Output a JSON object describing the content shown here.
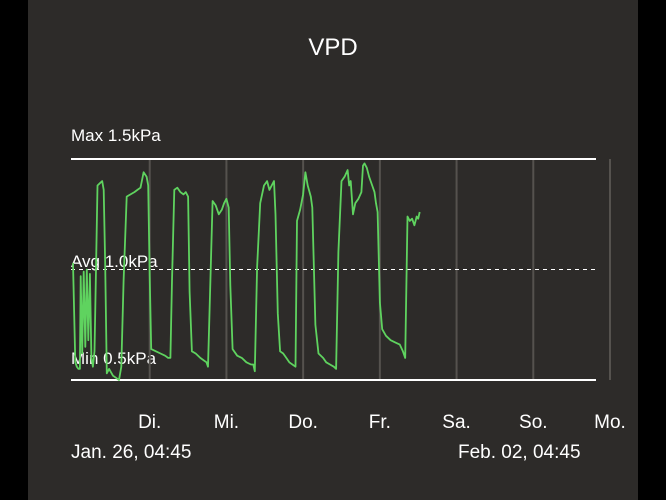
{
  "colors": {
    "background": "#000000",
    "panel": "#2d2b29",
    "series": "#5fd35f",
    "text": "#ffffff",
    "separator": "#55524e"
  },
  "chart_data": {
    "type": "line",
    "title": "VPD",
    "unit": "kPa",
    "reference_lines": [
      {
        "label": "Max 1.5kPa",
        "value": 1.5,
        "style": "solid"
      },
      {
        "label": "Avg 1.0kPa",
        "value": 1.0,
        "style": "dashed"
      },
      {
        "label": "Min 0.5kPa",
        "value": 0.5,
        "style": "solid"
      }
    ],
    "x_day_labels": [
      "Di.",
      "Mi.",
      "Do.",
      "Fr.",
      "Sa.",
      "So.",
      "Mo."
    ],
    "range_start": "Jan. 26, 04:45",
    "range_end": "Feb. 02, 04:45",
    "xlim_days": [
      0,
      7
    ],
    "ylim": [
      0.5,
      1.5
    ],
    "grid": "vertical day separators",
    "legend": "none",
    "series": [
      {
        "points": [
          [
            0.0,
            1.03
          ],
          [
            0.03,
            0.58
          ],
          [
            0.05,
            0.56
          ],
          [
            0.07,
            0.55
          ],
          [
            0.09,
            0.55
          ],
          [
            0.1,
            0.97
          ],
          [
            0.12,
            0.62
          ],
          [
            0.14,
            0.99
          ],
          [
            0.16,
            0.65
          ],
          [
            0.18,
            1.0
          ],
          [
            0.2,
            0.68
          ],
          [
            0.22,
            0.98
          ],
          [
            0.24,
            0.6
          ],
          [
            0.26,
            0.56
          ],
          [
            0.28,
            0.63
          ],
          [
            0.3,
            1.0
          ],
          [
            0.32,
            1.38
          ],
          [
            0.35,
            1.39
          ],
          [
            0.38,
            1.4
          ],
          [
            0.4,
            1.36
          ],
          [
            0.42,
            1.02
          ],
          [
            0.44,
            0.53
          ],
          [
            0.47,
            0.55
          ],
          [
            0.52,
            0.52
          ],
          [
            0.56,
            0.51
          ],
          [
            0.6,
            0.5
          ],
          [
            0.63,
            0.56
          ],
          [
            0.66,
            0.95
          ],
          [
            0.7,
            1.33
          ],
          [
            0.75,
            1.34
          ],
          [
            0.8,
            1.35
          ],
          [
            0.84,
            1.36
          ],
          [
            0.88,
            1.37
          ],
          [
            0.92,
            1.44
          ],
          [
            0.96,
            1.42
          ],
          [
            0.98,
            1.38
          ],
          [
            1.0,
            0.97
          ],
          [
            1.02,
            0.64
          ],
          [
            1.08,
            0.63
          ],
          [
            1.14,
            0.62
          ],
          [
            1.2,
            0.61
          ],
          [
            1.24,
            0.6
          ],
          [
            1.27,
            0.6
          ],
          [
            1.29,
            0.95
          ],
          [
            1.32,
            1.36
          ],
          [
            1.36,
            1.37
          ],
          [
            1.4,
            1.35
          ],
          [
            1.44,
            1.34
          ],
          [
            1.47,
            1.35
          ],
          [
            1.5,
            1.33
          ],
          [
            1.52,
            0.9
          ],
          [
            1.55,
            0.63
          ],
          [
            1.6,
            0.62
          ],
          [
            1.66,
            0.6
          ],
          [
            1.7,
            0.59
          ],
          [
            1.74,
            0.58
          ],
          [
            1.76,
            0.56
          ],
          [
            1.78,
            0.82
          ],
          [
            1.82,
            1.31
          ],
          [
            1.86,
            1.29
          ],
          [
            1.9,
            1.25
          ],
          [
            1.94,
            1.27
          ],
          [
            1.97,
            1.3
          ],
          [
            2.0,
            1.32
          ],
          [
            2.03,
            1.28
          ],
          [
            2.05,
            0.93
          ],
          [
            2.08,
            0.64
          ],
          [
            2.14,
            0.61
          ],
          [
            2.2,
            0.6
          ],
          [
            2.26,
            0.58
          ],
          [
            2.32,
            0.57
          ],
          [
            2.35,
            0.57
          ],
          [
            2.37,
            0.54
          ],
          [
            2.4,
            1.01
          ],
          [
            2.44,
            1.3
          ],
          [
            2.49,
            1.38
          ],
          [
            2.53,
            1.4
          ],
          [
            2.56,
            1.36
          ],
          [
            2.59,
            1.38
          ],
          [
            2.62,
            1.4
          ],
          [
            2.64,
            1.25
          ],
          [
            2.67,
            0.8
          ],
          [
            2.7,
            0.63
          ],
          [
            2.74,
            0.62
          ],
          [
            2.78,
            0.6
          ],
          [
            2.82,
            0.58
          ],
          [
            2.86,
            0.57
          ],
          [
            2.9,
            0.56
          ],
          [
            2.92,
            1.22
          ],
          [
            2.96,
            1.27
          ],
          [
            3.0,
            1.34
          ],
          [
            3.03,
            1.44
          ],
          [
            3.06,
            1.38
          ],
          [
            3.1,
            1.33
          ],
          [
            3.12,
            1.28
          ],
          [
            3.16,
            0.75
          ],
          [
            3.2,
            0.62
          ],
          [
            3.26,
            0.6
          ],
          [
            3.3,
            0.58
          ],
          [
            3.35,
            0.57
          ],
          [
            3.4,
            0.56
          ],
          [
            3.43,
            0.55
          ],
          [
            3.46,
            1.08
          ],
          [
            3.5,
            1.4
          ],
          [
            3.54,
            1.42
          ],
          [
            3.58,
            1.45
          ],
          [
            3.6,
            1.38
          ],
          [
            3.62,
            1.4
          ],
          [
            3.65,
            1.25
          ],
          [
            3.68,
            1.3
          ],
          [
            3.72,
            1.32
          ],
          [
            3.76,
            1.35
          ],
          [
            3.78,
            1.47
          ],
          [
            3.8,
            1.48
          ],
          [
            3.83,
            1.46
          ],
          [
            3.86,
            1.42
          ],
          [
            3.9,
            1.38
          ],
          [
            3.93,
            1.35
          ],
          [
            3.95,
            1.3
          ],
          [
            3.97,
            1.26
          ],
          [
            4.0,
            0.85
          ],
          [
            4.03,
            0.73
          ],
          [
            4.08,
            0.7
          ],
          [
            4.14,
            0.68
          ],
          [
            4.2,
            0.67
          ],
          [
            4.26,
            0.66
          ],
          [
            4.3,
            0.63
          ],
          [
            4.33,
            0.6
          ],
          [
            4.36,
            1.24
          ],
          [
            4.39,
            1.22
          ],
          [
            4.42,
            1.23
          ],
          [
            4.45,
            1.2
          ],
          [
            4.48,
            1.24
          ],
          [
            4.5,
            1.23
          ],
          [
            4.52,
            1.26
          ]
        ]
      }
    ]
  }
}
